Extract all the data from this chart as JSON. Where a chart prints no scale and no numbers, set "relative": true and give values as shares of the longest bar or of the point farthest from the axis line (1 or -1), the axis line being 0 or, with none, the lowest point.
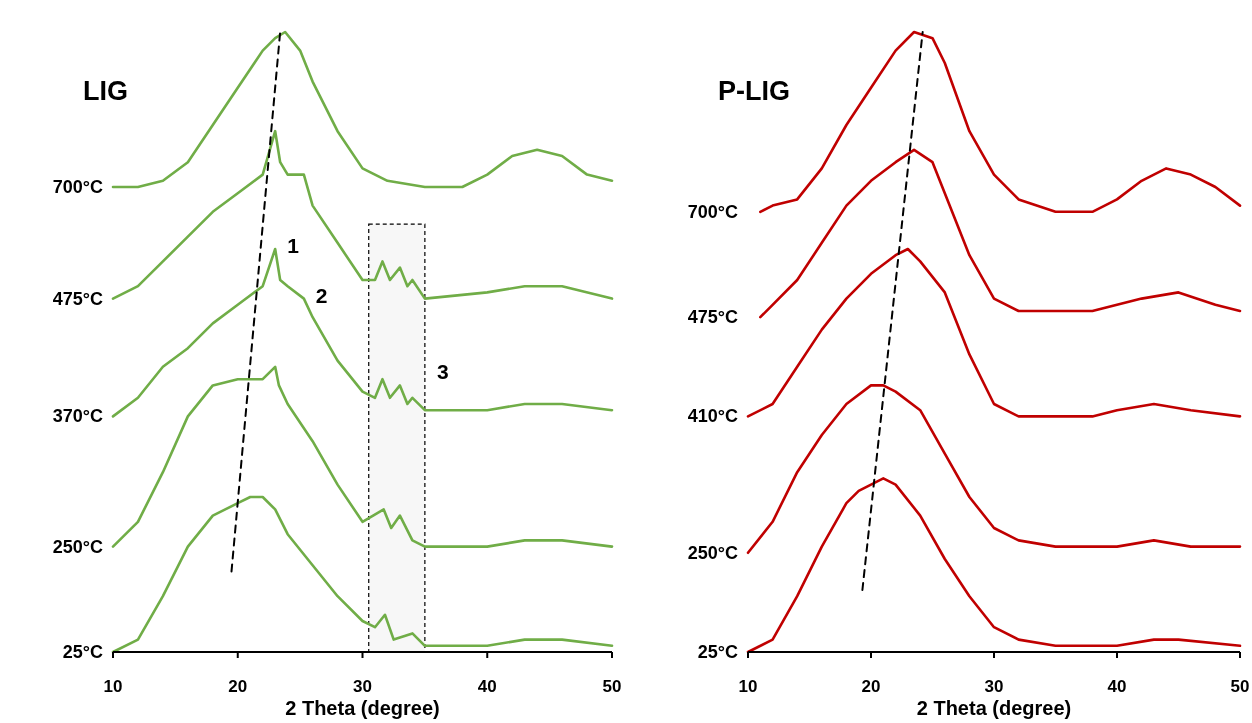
{
  "chart_data": [
    {
      "type": "line",
      "title": "LIG",
      "xlabel": "2 Theta (degree)",
      "relative": true,
      "xlim": [
        10,
        50
      ],
      "xticks": [
        10,
        20,
        30,
        40,
        50
      ],
      "grid": false,
      "marker": "none",
      "line_style": "solid",
      "series": [
        {
          "name": "700°C",
          "color": "#70ad47",
          "x": [
            10,
            12,
            14,
            16,
            18,
            20,
            22,
            23,
            23.8,
            25,
            26,
            28,
            30,
            32,
            35,
            38,
            40,
            42,
            44,
            46,
            48,
            50
          ],
          "values": [
            0.75,
            0.75,
            0.76,
            0.79,
            0.85,
            0.91,
            0.97,
            0.99,
            1.0,
            0.97,
            0.92,
            0.84,
            0.78,
            0.76,
            0.75,
            0.75,
            0.77,
            0.8,
            0.81,
            0.8,
            0.77,
            0.76
          ]
        },
        {
          "name": "475°C",
          "color": "#70ad47",
          "x": [
            10,
            12,
            14,
            16,
            18,
            20,
            22,
            23,
            23.4,
            24,
            25.3,
            26,
            28,
            30,
            31,
            31.6,
            32.2,
            33,
            33.6,
            34,
            35,
            40,
            43,
            46,
            50
          ],
          "values": [
            0.57,
            0.59,
            0.63,
            0.67,
            0.71,
            0.74,
            0.77,
            0.84,
            0.79,
            0.77,
            0.77,
            0.72,
            0.66,
            0.6,
            0.6,
            0.63,
            0.6,
            0.62,
            0.59,
            0.6,
            0.57,
            0.58,
            0.59,
            0.59,
            0.57
          ]
        },
        {
          "name": "370°C",
          "color": "#70ad47",
          "x": [
            10,
            12,
            14,
            16,
            18,
            20,
            22,
            23,
            23.4,
            24,
            25.3,
            26,
            28,
            30,
            31,
            31.6,
            32.2,
            33,
            33.6,
            34,
            35,
            40,
            43,
            46,
            50
          ],
          "values": [
            0.38,
            0.41,
            0.46,
            0.49,
            0.53,
            0.56,
            0.59,
            0.65,
            0.6,
            0.59,
            0.57,
            0.54,
            0.47,
            0.42,
            0.41,
            0.44,
            0.41,
            0.43,
            0.4,
            0.41,
            0.39,
            0.39,
            0.4,
            0.4,
            0.39
          ]
        },
        {
          "name": "250°C",
          "color": "#70ad47",
          "x": [
            10,
            12,
            14,
            16,
            18,
            20,
            22,
            23,
            23.3,
            24,
            26,
            28,
            30,
            31.7,
            32.3,
            33,
            34,
            35,
            40,
            43,
            46,
            50
          ],
          "values": [
            0.17,
            0.21,
            0.29,
            0.38,
            0.43,
            0.44,
            0.44,
            0.46,
            0.43,
            0.4,
            0.34,
            0.27,
            0.21,
            0.23,
            0.2,
            0.22,
            0.18,
            0.17,
            0.17,
            0.18,
            0.18,
            0.17
          ]
        },
        {
          "name": "25°C",
          "color": "#70ad47",
          "x": [
            10,
            12,
            14,
            16,
            18,
            19,
            20,
            21,
            22,
            23,
            24,
            26,
            28,
            30,
            31,
            31.8,
            32.5,
            34,
            35,
            40,
            43,
            46,
            50
          ],
          "values": [
            0.0,
            0.02,
            0.09,
            0.17,
            0.22,
            0.23,
            0.24,
            0.25,
            0.25,
            0.23,
            0.19,
            0.14,
            0.09,
            0.05,
            0.04,
            0.06,
            0.02,
            0.03,
            0.01,
            0.01,
            0.02,
            0.02,
            0.01
          ]
        },
        {
          "type": "line",
          "color": "#000000",
          "line_style": "dashed",
          "x": [
            19.5,
            23.4
          ],
          "values": [
            0.13,
            1.0
          ]
        }
      ],
      "bands": [
        {
          "axis": "x",
          "from": 30.5,
          "to": 35,
          "label": "3",
          "color": "#000000"
        }
      ],
      "annotations": [
        {
          "text": "1",
          "x": 23,
          "y": 0.65
        },
        {
          "text": "2",
          "x": 25.3,
          "y": 0.57
        }
      ]
    },
    {
      "type": "line",
      "title": "P-LIG",
      "xlabel": "2 Theta (degree)",
      "relative": true,
      "xlim": [
        10,
        50
      ],
      "xticks": [
        10,
        20,
        30,
        40,
        50
      ],
      "grid": false,
      "marker": "none",
      "line_style": "solid",
      "series": [
        {
          "name": "700°C",
          "color": "#c00000",
          "x": [
            11,
            12,
            14,
            16,
            18,
            20,
            22,
            23.5,
            25,
            26,
            28,
            30,
            32,
            35,
            38,
            40,
            42,
            44,
            46,
            48,
            50
          ],
          "values": [
            0.71,
            0.72,
            0.73,
            0.78,
            0.85,
            0.91,
            0.97,
            1.0,
            0.99,
            0.95,
            0.84,
            0.77,
            0.73,
            0.71,
            0.71,
            0.73,
            0.76,
            0.78,
            0.77,
            0.75,
            0.72
          ]
        },
        {
          "name": "475°C",
          "color": "#c00000",
          "x": [
            11,
            12,
            14,
            16,
            18,
            20,
            22,
            23.5,
            25,
            26,
            28,
            30,
            32,
            35,
            38,
            40,
            42,
            45,
            48,
            50
          ],
          "values": [
            0.54,
            0.56,
            0.6,
            0.66,
            0.72,
            0.76,
            0.79,
            0.81,
            0.79,
            0.74,
            0.64,
            0.57,
            0.55,
            0.55,
            0.55,
            0.56,
            0.57,
            0.58,
            0.56,
            0.55
          ]
        },
        {
          "name": "410°C",
          "color": "#c00000",
          "x": [
            10,
            12,
            14,
            16,
            18,
            20,
            22,
            23,
            24,
            26,
            28,
            30,
            32,
            35,
            38,
            40,
            43,
            46,
            50
          ],
          "values": [
            0.38,
            0.4,
            0.46,
            0.52,
            0.57,
            0.61,
            0.64,
            0.65,
            0.63,
            0.58,
            0.48,
            0.4,
            0.38,
            0.38,
            0.38,
            0.39,
            0.4,
            0.39,
            0.38
          ]
        },
        {
          "name": "250°C",
          "color": "#c00000",
          "x": [
            10,
            12,
            14,
            16,
            18,
            20,
            21,
            22,
            24,
            26,
            28,
            30,
            32,
            35,
            40,
            43,
            46,
            50
          ],
          "values": [
            0.16,
            0.21,
            0.29,
            0.35,
            0.4,
            0.43,
            0.43,
            0.42,
            0.39,
            0.32,
            0.25,
            0.2,
            0.18,
            0.17,
            0.17,
            0.18,
            0.17,
            0.17
          ]
        },
        {
          "name": "25°C",
          "color": "#c00000",
          "x": [
            10,
            12,
            14,
            16,
            18,
            19,
            20,
            21,
            22,
            24,
            26,
            28,
            30,
            32,
            35,
            40,
            43,
            45,
            50
          ],
          "values": [
            0.0,
            0.02,
            0.09,
            0.17,
            0.24,
            0.26,
            0.27,
            0.28,
            0.27,
            0.22,
            0.15,
            0.09,
            0.04,
            0.02,
            0.01,
            0.01,
            0.02,
            0.02,
            0.01
          ]
        },
        {
          "type": "line",
          "color": "#000000",
          "line_style": "dashed",
          "x": [
            19.3,
            24.2
          ],
          "values": [
            0.1,
            1.0
          ]
        }
      ]
    }
  ]
}
